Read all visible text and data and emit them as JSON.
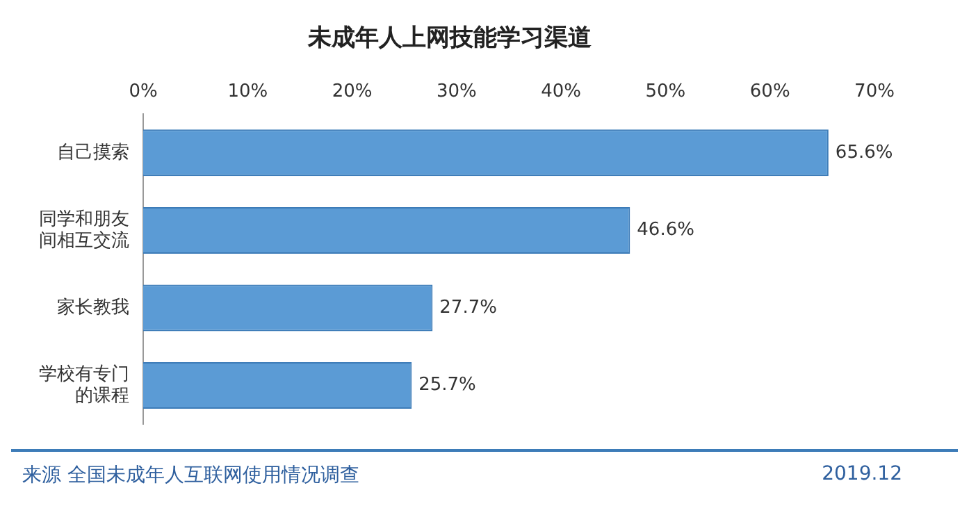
{
  "chart_data": {
    "type": "bar",
    "orientation": "horizontal",
    "title": "未成年人上网技能学习渠道",
    "categories": [
      "自己摸索",
      "同学和朋友间相互交流",
      "家长教我",
      "学校有专门的课程"
    ],
    "values": [
      65.6,
      46.6,
      27.7,
      25.7
    ],
    "color": "#5b9bd5",
    "value_labels": [
      "65.6%",
      "46.6%",
      "27.7%",
      "25.7%"
    ],
    "xlim": [
      0,
      70
    ],
    "xticks": [
      {
        "value": 0,
        "label": "0%"
      },
      {
        "value": 10,
        "label": "10%"
      },
      {
        "value": 20,
        "label": "20%"
      },
      {
        "value": 30,
        "label": "30%"
      },
      {
        "value": 40,
        "label": "40%"
      },
      {
        "value": 50,
        "label": "50%"
      },
      {
        "value": 60,
        "label": "60%"
      },
      {
        "value": 70,
        "label": "70%"
      }
    ],
    "grid": false,
    "legend": false,
    "annotations": [
      "来源 全国未成年人互联网使用情况调查",
      "2019.12"
    ]
  }
}
